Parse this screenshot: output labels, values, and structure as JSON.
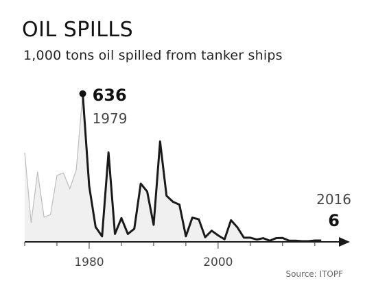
{
  "title": "OIL SPILLS",
  "subtitle": "1,000 tons oil spilled from tanker ships",
  "source": "Source: ITOPF",
  "colors": {
    "line": "#1a1a1a",
    "area": "#f0f0f0",
    "earlyLine": "#bdbdbd"
  },
  "chart_data": {
    "type": "line",
    "title": "OIL SPILLS",
    "subtitle": "1,000 tons oil spilled from tanker ships",
    "xlabel": "",
    "ylabel": "",
    "xlim": [
      1970,
      2018
    ],
    "ylim": [
      0,
      700
    ],
    "xticks": [
      1980,
      2000
    ],
    "grid": false,
    "x": [
      1970,
      1971,
      1972,
      1973,
      1974,
      1975,
      1976,
      1977,
      1978,
      1979,
      1980,
      1981,
      1982,
      1983,
      1984,
      1985,
      1986,
      1987,
      1988,
      1989,
      1990,
      1991,
      1992,
      1993,
      1994,
      1995,
      1996,
      1997,
      1998,
      1999,
      2000,
      2001,
      2002,
      2003,
      2004,
      2005,
      2006,
      2007,
      2008,
      2009,
      2010,
      2011,
      2012,
      2013,
      2014,
      2015,
      2016
    ],
    "values": [
      383,
      82,
      301,
      106,
      117,
      285,
      296,
      228,
      310,
      636,
      240,
      64,
      24,
      384,
      34,
      102,
      34,
      56,
      250,
      216,
      73,
      431,
      198,
      172,
      160,
      24,
      104,
      97,
      20,
      48,
      28,
      11,
      93,
      62,
      18,
      18,
      10,
      16,
      5,
      16,
      17,
      5,
      5,
      3,
      3,
      6,
      6
    ],
    "early_years_end": 1979,
    "annotations": [
      {
        "year": "1979",
        "value": "636"
      },
      {
        "year": "2016",
        "value": "6"
      }
    ]
  }
}
